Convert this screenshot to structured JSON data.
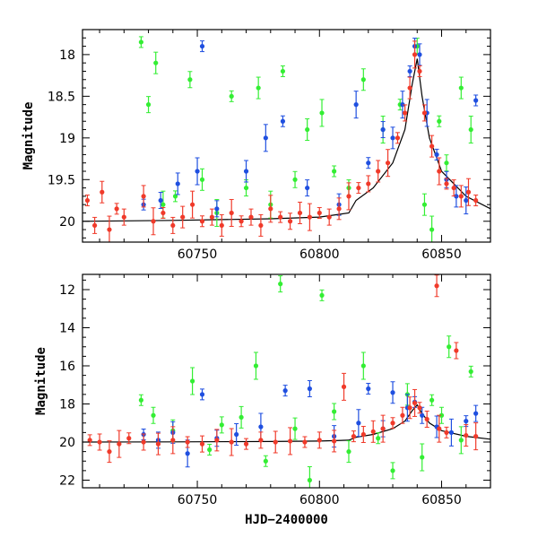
{
  "chart_data": [
    {
      "type": "scatter",
      "title": "",
      "xlabel": "",
      "ylabel": "Magnitude",
      "xlim": [
        60703,
        60870
      ],
      "ylim": [
        20.25,
        17.7
      ],
      "y_inverted": true,
      "xticks": [
        60750,
        60800,
        60850
      ],
      "yticks": [
        18,
        18.5,
        19,
        19.5,
        20
      ],
      "grid": false,
      "legend": "none",
      "colors": {
        "green": "#33ee33",
        "blue": "#1f4fe0",
        "red": "#f03a2a",
        "model": "#000000"
      },
      "model_curve": {
        "x": [
          60703,
          60740,
          60780,
          60800,
          60812,
          60815,
          60822,
          60830,
          60835,
          60838,
          60840,
          60842,
          60845,
          60850,
          60860,
          60870
        ],
        "y": [
          20.0,
          19.99,
          19.97,
          19.95,
          19.9,
          19.75,
          19.6,
          19.3,
          18.9,
          18.35,
          18.05,
          18.5,
          19.0,
          19.4,
          19.7,
          19.85
        ]
      },
      "series": [
        {
          "color": "red",
          "x": [
            60705,
            60708,
            60711,
            60714,
            60717,
            60720,
            60728,
            60732,
            60736,
            60740,
            60744,
            60748,
            60752,
            60756,
            60760,
            60764,
            60768,
            60772,
            60776,
            60780,
            60784,
            60788,
            60792,
            60796,
            60800,
            60804,
            60808,
            60812,
            60816,
            60820,
            60824,
            60828,
            60832,
            60835,
            60837,
            60839,
            60841,
            60843,
            60846,
            60849,
            60852,
            60855,
            60858,
            60861,
            60864
          ],
          "y": [
            19.75,
            20.05,
            19.65,
            20.1,
            19.85,
            19.95,
            19.7,
            20.0,
            19.9,
            20.05,
            19.95,
            19.8,
            20.0,
            19.95,
            20.05,
            19.9,
            20.0,
            19.95,
            20.05,
            19.85,
            19.95,
            20.0,
            19.9,
            19.95,
            19.9,
            19.95,
            19.85,
            19.7,
            19.6,
            19.55,
            19.4,
            19.3,
            19.0,
            18.7,
            18.4,
            18.0,
            18.2,
            18.7,
            19.1,
            19.4,
            19.55,
            19.6,
            19.7,
            19.65,
            19.75
          ]
        },
        {
          "color": "blue",
          "x": [
            60728,
            60735,
            60742,
            60750,
            60752,
            60758,
            60770,
            60778,
            60785,
            60795,
            60808,
            60815,
            60820,
            60826,
            60830,
            60834,
            60837,
            60839,
            60841,
            60844,
            60848,
            60852,
            60856,
            60860,
            60864
          ],
          "y": [
            19.8,
            19.75,
            19.55,
            19.4,
            17.9,
            19.85,
            19.4,
            19.0,
            18.8,
            19.6,
            19.8,
            18.6,
            19.3,
            18.9,
            19.0,
            18.6,
            18.2,
            17.9,
            18.0,
            18.7,
            19.2,
            19.5,
            19.7,
            19.75,
            18.55
          ]
        },
        {
          "color": "green",
          "x": [
            60727,
            60730,
            60733,
            60736,
            60741,
            60747,
            60752,
            60758,
            60764,
            60770,
            60775,
            60780,
            60785,
            60790,
            60795,
            60801,
            60806,
            60812,
            60818,
            60826,
            60833,
            60840,
            60843,
            60846,
            60849,
            60852,
            60858,
            60862
          ],
          "y": [
            17.85,
            18.6,
            18.1,
            19.8,
            19.7,
            18.3,
            19.5,
            19.9,
            18.5,
            19.6,
            18.4,
            19.8,
            18.2,
            19.5,
            18.9,
            18.7,
            19.4,
            19.6,
            18.3,
            18.9,
            18.6,
            17.9,
            19.8,
            20.1,
            18.8,
            19.3,
            18.4,
            18.9
          ]
        }
      ]
    },
    {
      "type": "scatter",
      "title": "",
      "xlabel": "HJD−2400000",
      "ylabel": "Magnitude",
      "xlim": [
        60703,
        60870
      ],
      "ylim": [
        22.4,
        11.2
      ],
      "y_inverted": true,
      "xticks": [
        60750,
        60800,
        60850
      ],
      "yticks": [
        12,
        14,
        16,
        18,
        20,
        22
      ],
      "grid": false,
      "legend": "none",
      "colors": {
        "green": "#33ee33",
        "blue": "#1f4fe0",
        "red": "#f03a2a",
        "model": "#000000"
      },
      "model_curve": {
        "x": [
          60703,
          60740,
          60780,
          60800,
          60812,
          60815,
          60822,
          60830,
          60835,
          60838,
          60840,
          60842,
          60845,
          60850,
          60860,
          60870
        ],
        "y": [
          20.0,
          19.99,
          19.97,
          19.95,
          19.9,
          19.75,
          19.6,
          19.3,
          18.9,
          18.35,
          18.05,
          18.5,
          19.0,
          19.4,
          19.7,
          19.85
        ]
      },
      "series": [
        {
          "color": "red",
          "x": [
            60706,
            60710,
            60714,
            60718,
            60722,
            60728,
            60734,
            60740,
            60746,
            60752,
            60758,
            60764,
            60770,
            60776,
            60782,
            60788,
            60794,
            60800,
            60806,
            60810,
            60814,
            60818,
            60822,
            60826,
            60830,
            60834,
            60837,
            60839,
            60841,
            60844,
            60848,
            60849,
            60852,
            60856,
            60860,
            60864
          ],
          "y": [
            19.9,
            20.0,
            20.5,
            20.1,
            19.8,
            20.0,
            20.1,
            19.9,
            20.0,
            20.1,
            19.9,
            20.0,
            20.1,
            19.9,
            20.0,
            19.95,
            20.0,
            19.9,
            19.95,
            17.1,
            19.7,
            19.6,
            19.45,
            19.3,
            19.0,
            18.6,
            18.2,
            17.95,
            18.2,
            18.8,
            11.8,
            19.3,
            19.5,
            15.2,
            19.65,
            19.7
          ]
        },
        {
          "color": "blue",
          "x": [
            60728,
            60734,
            60740,
            60746,
            60752,
            60758,
            60766,
            60776,
            60786,
            60796,
            60806,
            60816,
            60820,
            60826,
            60830,
            60836,
            60839,
            60842,
            60848,
            60854,
            60860,
            60864
          ],
          "y": [
            19.6,
            19.9,
            19.5,
            20.6,
            17.5,
            19.8,
            19.6,
            19.2,
            17.3,
            17.2,
            19.7,
            19.0,
            17.2,
            19.3,
            17.4,
            18.2,
            17.9,
            18.6,
            19.2,
            19.5,
            18.9,
            18.5
          ]
        },
        {
          "color": "green",
          "x": [
            60727,
            60732,
            60740,
            60748,
            60755,
            60760,
            60768,
            60774,
            60778,
            60784,
            60790,
            60796,
            60801,
            60806,
            60812,
            60818,
            60824,
            60830,
            60836,
            60842,
            60846,
            60850,
            60853,
            60858,
            60862
          ],
          "y": [
            17.8,
            18.6,
            19.4,
            16.8,
            20.4,
            19.1,
            18.7,
            16.0,
            21.0,
            11.7,
            19.3,
            22.0,
            12.3,
            18.4,
            20.5,
            16.0,
            19.8,
            21.5,
            17.5,
            20.8,
            17.8,
            18.6,
            15.0,
            19.9,
            16.3
          ]
        }
      ]
    }
  ]
}
